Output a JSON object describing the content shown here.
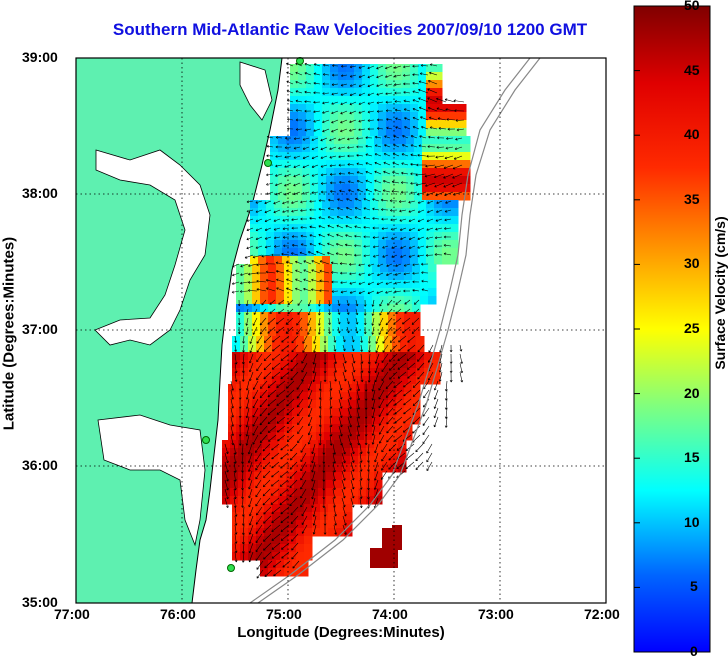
{
  "title": "Southern Mid-Atlantic Raw Velocities 2007/09/10 1200 GMT",
  "xlabel": "Longitude (Degrees:Minutes)",
  "ylabel": "Latitude (Degrees:Minutes)",
  "colorbar_label": "Surface Velocity (cm/s)",
  "x_ticks": [
    "77:00",
    "76:00",
    "75:00",
    "74:00",
    "73:00",
    "72:00"
  ],
  "y_ticks": [
    "39:00",
    "38:00",
    "37:00",
    "36:00",
    "35:00"
  ],
  "colorbar_ticks": [
    "50",
    "45",
    "40",
    "35",
    "30",
    "25",
    "20",
    "15",
    "10",
    "5",
    "0"
  ],
  "colors": {
    "land": "#5ef0b0",
    "title": "#1010e0"
  }
}
